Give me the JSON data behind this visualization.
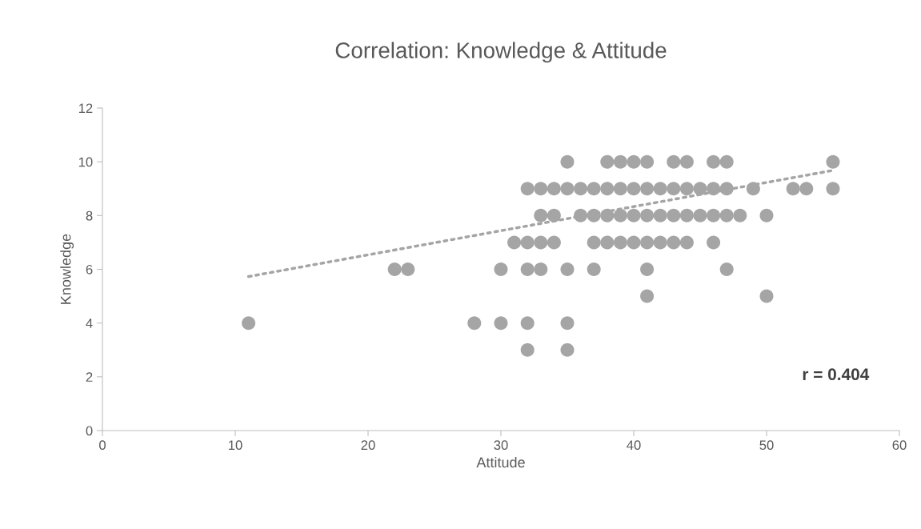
{
  "chart_data": {
    "type": "scatter",
    "title": "Correlation: Knowledge & Attitude",
    "xlabel": "Attitude",
    "ylabel": "Knowledge",
    "xlim": [
      0,
      60
    ],
    "xticks": [
      0,
      10,
      20,
      30,
      40,
      50,
      60
    ],
    "ylim": [
      0,
      12
    ],
    "yticks": [
      0,
      2,
      4,
      6,
      8,
      10,
      12
    ],
    "grid": false,
    "legend": false,
    "marker": "circle",
    "series": [
      {
        "color": "#a5a5a5",
        "x": [
          35,
          38,
          39,
          40,
          41,
          43,
          44,
          46,
          47,
          55,
          32,
          33,
          34,
          35,
          36,
          37,
          38,
          39,
          40,
          41,
          42,
          43,
          44,
          45,
          46,
          47,
          49,
          52,
          53,
          55,
          33,
          34,
          36,
          37,
          38,
          39,
          40,
          41,
          42,
          43,
          44,
          45,
          46,
          47,
          48,
          50,
          31,
          32,
          33,
          34,
          37,
          38,
          39,
          40,
          41,
          42,
          43,
          44,
          46,
          22,
          23,
          30,
          32,
          33,
          35,
          37,
          41,
          47,
          41,
          50,
          11,
          28,
          30,
          32,
          35,
          32,
          35
        ],
        "values": [
          10,
          10,
          10,
          10,
          10,
          10,
          10,
          10,
          10,
          10,
          9,
          9,
          9,
          9,
          9,
          9,
          9,
          9,
          9,
          9,
          9,
          9,
          9,
          9,
          9,
          9,
          9,
          9,
          9,
          9,
          8,
          8,
          8,
          8,
          8,
          8,
          8,
          8,
          8,
          8,
          8,
          8,
          8,
          8,
          8,
          8,
          7,
          7,
          7,
          7,
          7,
          7,
          7,
          7,
          7,
          7,
          7,
          7,
          7,
          6,
          6,
          6,
          6,
          6,
          6,
          6,
          6,
          6,
          5,
          5,
          4,
          4,
          4,
          4,
          4,
          3,
          3
        ]
      },
      {
        "type": "line",
        "color": "#a5a5a5",
        "line_style": "dotted",
        "marker": "none",
        "x": [
          11,
          55
        ],
        "values": [
          5.73,
          9.68
        ]
      }
    ],
    "annotations": [
      "r = 0.404"
    ]
  }
}
